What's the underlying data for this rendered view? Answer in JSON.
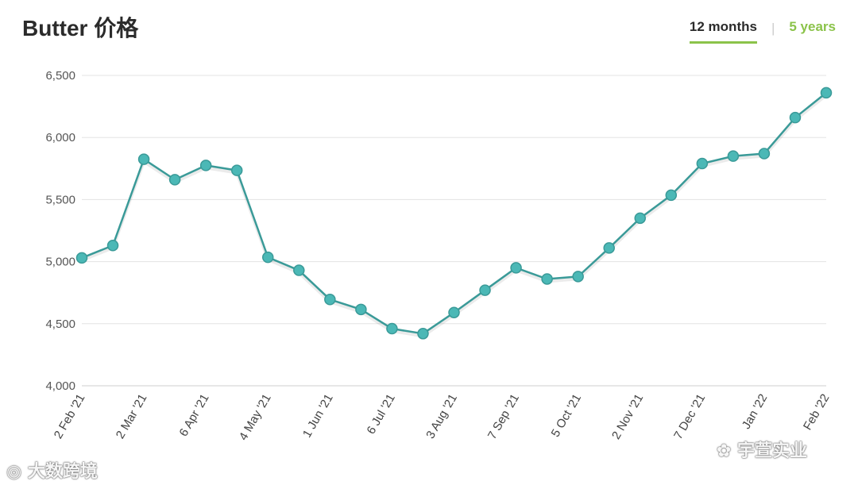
{
  "header": {
    "title": "Butter 价格",
    "tabs": [
      {
        "label": "12 months",
        "active": true
      },
      {
        "label": "5 years",
        "active": false
      }
    ],
    "separator": "|"
  },
  "watermarks": {
    "left": "大数跨境",
    "right": "宇萱实业"
  },
  "colors": {
    "line": "#3a9a98",
    "marker_fill": "#4bb8b6",
    "accent": "#8bc34a",
    "grid": "#e3e3e3"
  },
  "chart_data": {
    "type": "line",
    "title": "Butter 价格",
    "xlabel": "",
    "ylabel": "",
    "ylim": [
      4000,
      6500
    ],
    "yticks": [
      4000,
      4500,
      5000,
      5500,
      6000,
      6500
    ],
    "ytick_labels": [
      "4,000",
      "4,500",
      "5,000",
      "5,500",
      "6,000",
      "6,500"
    ],
    "x_labels": [
      "2 Feb '21",
      "2 Mar '21",
      "6 Apr '21",
      "4 May '21",
      "1 Jun '21",
      "6 Jul '21",
      "3 Aug '21",
      "7 Sep '21",
      "5 Oct '21",
      "2 Nov '21",
      "7 Dec '21",
      "4 Jan '22",
      "1 Feb '22"
    ],
    "x_labels_visible": [
      "2 Feb '21",
      "2 Mar '21",
      "6 Apr '21",
      "4 May '21",
      "1 Jun '21",
      "6 Jul '21",
      "3 Aug '21",
      "7 Sep '21",
      "5 Oct '21",
      "2 Nov '21",
      "7 Dec '21",
      "Jan '22",
      "Feb '22"
    ],
    "x_label_positions": [
      0,
      2,
      4,
      6,
      8,
      10,
      12,
      14,
      16,
      18,
      20,
      22,
      24
    ],
    "grid": true,
    "legend": "none",
    "series": [
      {
        "values": [
          5030,
          5130,
          5825,
          5660,
          5775,
          5735,
          5035,
          4930,
          4695,
          4615,
          4460,
          4420,
          4590,
          4770,
          4950,
          4860,
          4880,
          5110,
          5350,
          5535,
          5790,
          5850,
          5870,
          6160,
          6360
        ]
      }
    ]
  }
}
